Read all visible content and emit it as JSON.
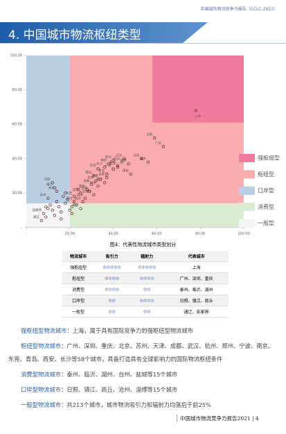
{
  "header": {
    "report": "中国城市物流竞争力报告（CCLC-2021）",
    "title": "4. 中国城市物流枢纽类型"
  },
  "chart_data": {
    "type": "scatter",
    "xlim": [
      0,
      100
    ],
    "ylim": [
      0,
      100
    ],
    "xticks": [
      {
        "value": 0,
        "label": "-"
      },
      {
        "value": 20,
        "label": "20.00"
      },
      {
        "value": 40,
        "label": "40.00"
      },
      {
        "value": 60,
        "label": "60.00"
      },
      {
        "value": 80,
        "label": "80.00"
      },
      {
        "value": 100,
        "label": "100.00"
      }
    ],
    "yticks": [
      {
        "value": 0,
        "label": "-"
      },
      {
        "value": 20,
        "label": "20.00"
      },
      {
        "value": 40,
        "label": "40.00"
      },
      {
        "value": 60,
        "label": "60.00"
      },
      {
        "value": 80,
        "label": "80.00"
      },
      {
        "value": 100,
        "label": "100.00"
      }
    ],
    "regions": [
      {
        "name": "强枢纽型",
        "color": "#f27a9e",
        "x": [
          58,
          100
        ],
        "y": [
          61,
          100
        ]
      },
      {
        "name": "枢纽型",
        "color": "#f9abae",
        "x": [
          20,
          100
        ],
        "y": [
          14,
          100
        ]
      },
      {
        "name": "口岸型",
        "color": "#b9cde3",
        "x": [
          0,
          20
        ],
        "y": [
          14,
          100
        ]
      },
      {
        "name": "消费型",
        "color": "#d8ebd1",
        "x": [
          20,
          100
        ],
        "y": [
          0,
          14
        ]
      },
      {
        "name": "一般型",
        "color": "#f4f4f4",
        "x": [
          0,
          20
        ],
        "y": [
          0,
          14
        ]
      }
    ],
    "point_color": "#5a1d1d",
    "x": [
      78,
      59,
      63,
      56,
      53,
      47,
      44,
      42,
      45,
      40,
      42,
      40,
      36,
      37,
      48,
      38,
      33,
      31,
      37,
      36,
      32,
      30,
      33,
      29,
      28,
      31,
      25,
      22,
      34,
      26,
      22,
      25,
      27,
      12,
      13,
      14,
      10,
      8,
      7,
      15,
      18,
      20,
      16,
      11,
      9,
      12,
      17,
      21,
      19,
      14,
      10,
      23,
      24,
      18,
      13,
      16,
      21,
      9
    ],
    "y": [
      68,
      52,
      47,
      38,
      40,
      37,
      38,
      35,
      40,
      39,
      36,
      34,
      35,
      31,
      31,
      37,
      34,
      30,
      29,
      26,
      27,
      25,
      24,
      21,
      22,
      19,
      20,
      18,
      28,
      15,
      15,
      11,
      17,
      26,
      23,
      21,
      17,
      8,
      4,
      12,
      14,
      10,
      9,
      13,
      6,
      10,
      18,
      12,
      16,
      15,
      11,
      13,
      22,
      20,
      7,
      5,
      8,
      12
    ],
    "point_labels": [
      "上海",
      "深圳",
      "广州",
      "重庆",
      "北京",
      "成都",
      "杭州",
      "天津",
      "武汉",
      "苏州",
      "郑州",
      "宁波",
      "长沙",
      "青岛",
      "西安",
      "南京",
      "东莞",
      "佛山",
      "合肥",
      "厦门",
      "泉州",
      "济南",
      "福州",
      "昆明",
      "南昌",
      "石家庄",
      "沈阳",
      "大连",
      "无锡",
      "绍兴",
      "湖州",
      "嘉兴",
      "温州",
      "日照",
      "镇江",
      "商丘",
      "沧州",
      "张家界",
      "通辽",
      null,
      null,
      null,
      null,
      null,
      null,
      null,
      null,
      null,
      null,
      null,
      null,
      null,
      null,
      null,
      null,
      null,
      null,
      null
    ]
  },
  "caption": "图4：代表性物流城市类型划分",
  "table": {
    "header": [
      "物流城市",
      "吸引力",
      "辐射力",
      "代表城市"
    ],
    "rows": [
      [
        "强枢纽型",
        "◎◎◎◎◎",
        "◎◎◎◎◎",
        "上海"
      ],
      [
        "枢纽型",
        "◎◎◎◎",
        "◎◎◎◎",
        "广州、深圳、重庆"
      ],
      [
        "消费型",
        "◎◎◎◎",
        "◎◎",
        "泰州、临沂、湖州"
      ],
      [
        "口岸型",
        "◎◎",
        "◎◎◎◎",
        "日照、镇江、商丘"
      ],
      [
        "一般型",
        "◎◎",
        "◎◎",
        "通辽、张家界"
      ]
    ]
  },
  "paragraphs": [
    {
      "lead": "强枢纽型物流城市",
      "text": "：上海，属于具有国际竞争力的强枢纽型物流城市"
    },
    {
      "lead": "枢纽型物流城市",
      "text": "：广州、深圳、重庆、北京、苏州、天津、成都、武汉、杭州、郑州、宁波、南京、东莞、青岛、西安、长沙等58个城市，具备打造具有全球影响力的国际物流枢纽条件"
    },
    {
      "lead": "消费型物流城市",
      "text": "：泰州、临沂、湖州、台州、盐城等15个城市"
    },
    {
      "lead": "口岸型物流城市",
      "text": "：日照、镇江、商丘、沧州、淄博等15个城市"
    },
    {
      "lead": "一般型物流城市",
      "text": "：共213个城市，城市物流吸引力和辐射力均落后于前25%"
    }
  ],
  "footer": {
    "report": "中国城市物流竞争力报告2021",
    "page": "4"
  }
}
